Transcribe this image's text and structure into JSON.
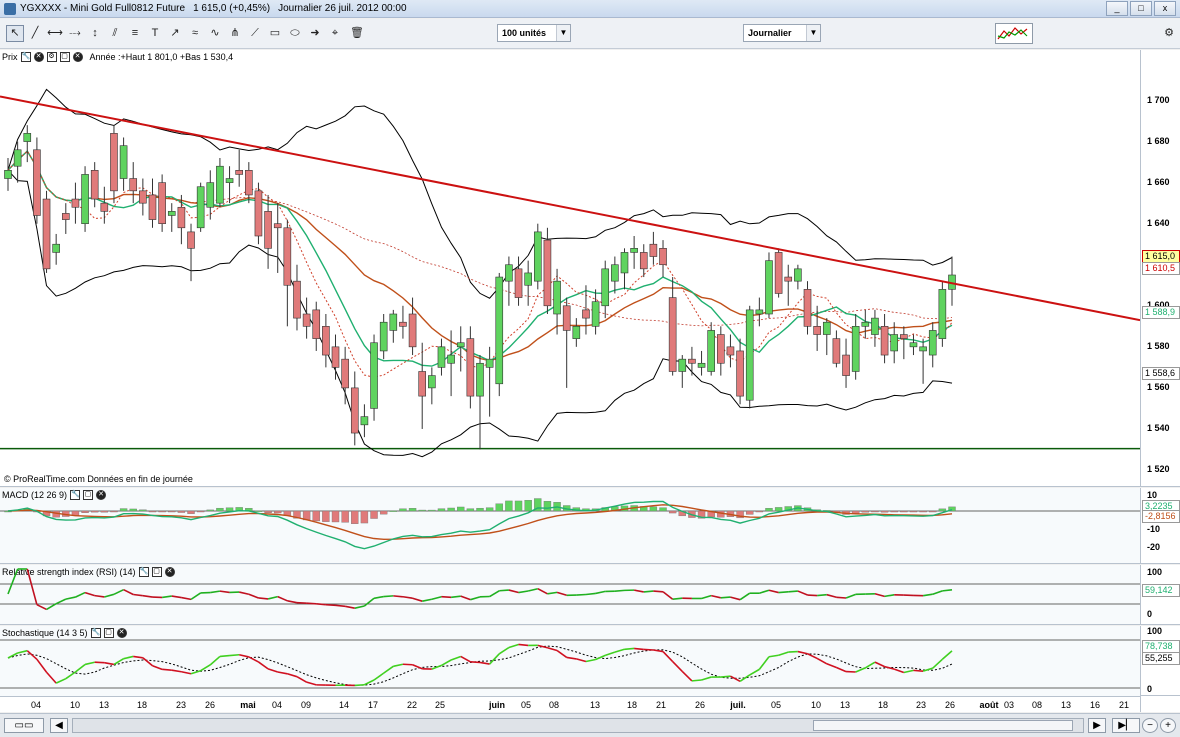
{
  "window": {
    "title_parts": [
      "YGXXXX - Mini Gold Full0812 Future",
      "1 615,0 (+0,45%)",
      "Journalier  26 juil. 2012 00:00"
    ],
    "controls": [
      "_",
      "□",
      "x"
    ]
  },
  "toolbar": {
    "units_select": "100 unités",
    "period_select": "Journalier"
  },
  "price_panel": {
    "title": "Prix",
    "note": "Année :+Haut 1 801,0 +Bas 1 530,4",
    "footer": "© ProRealTime.com  Données en fin de journée",
    "y_ticks": [
      "1 700",
      "1 680",
      "1 660",
      "1 640",
      "1 620",
      "1 600",
      "1 580",
      "1 560",
      "1 540",
      "1 520"
    ],
    "tags": [
      "1 615,0",
      "1 610,5",
      "1 588,9",
      "1 558,6"
    ]
  },
  "macd_panel": {
    "title": "MACD (12 26 9)",
    "y_ticks": [
      "10",
      "-10",
      "-20"
    ],
    "tags": [
      "3,2235",
      "-2,8156"
    ]
  },
  "rsi_panel": {
    "title": "Relative strength index (RSI) (14)",
    "y_ticks": [
      "100",
      "0"
    ],
    "tags": [
      "59,142"
    ]
  },
  "stoch_panel": {
    "title": "Stochastique (14 3 5)",
    "y_ticks": [
      "100",
      "0"
    ],
    "tags": [
      "78,738",
      "55,255"
    ]
  },
  "x_axis": {
    "labels": [
      "04",
      "10",
      "13",
      "18",
      "23",
      "26",
      "mai",
      "04",
      "09",
      "14",
      "17",
      "22",
      "25",
      "juin",
      "05",
      "08",
      "13",
      "18",
      "21",
      "26",
      "juil.",
      "05",
      "10",
      "13",
      "18",
      "23",
      "26",
      "août",
      "03",
      "08",
      "13",
      "16",
      "21"
    ]
  },
  "colors": {
    "bull": "#5fd35f",
    "bear": "#e07a7a",
    "trendline": "#cc1111",
    "ma_orange": "#c0501a",
    "ma_green": "#20b070",
    "bollinger": "#000000"
  },
  "chart_data": {
    "type": "candlestick",
    "title": "Mini Gold Full0812 Future",
    "ylim": [
      1520,
      1710
    ],
    "candles": [
      {
        "o": 1662,
        "h": 1672,
        "l": 1656,
        "c": 1666
      },
      {
        "o": 1668,
        "h": 1680,
        "l": 1660,
        "c": 1676
      },
      {
        "o": 1680,
        "h": 1688,
        "l": 1670,
        "c": 1684
      },
      {
        "o": 1676,
        "h": 1682,
        "l": 1640,
        "c": 1644
      },
      {
        "o": 1652,
        "h": 1656,
        "l": 1616,
        "c": 1618
      },
      {
        "o": 1626,
        "h": 1635,
        "l": 1620,
        "c": 1630
      },
      {
        "o": 1645,
        "h": 1650,
        "l": 1635,
        "c": 1642
      },
      {
        "o": 1652,
        "h": 1660,
        "l": 1640,
        "c": 1648
      },
      {
        "o": 1640,
        "h": 1668,
        "l": 1636,
        "c": 1664
      },
      {
        "o": 1666,
        "h": 1670,
        "l": 1648,
        "c": 1652
      },
      {
        "o": 1650,
        "h": 1658,
        "l": 1640,
        "c": 1646
      },
      {
        "o": 1684,
        "h": 1688,
        "l": 1650,
        "c": 1656
      },
      {
        "o": 1662,
        "h": 1682,
        "l": 1656,
        "c": 1678
      },
      {
        "o": 1662,
        "h": 1670,
        "l": 1650,
        "c": 1656
      },
      {
        "o": 1656,
        "h": 1662,
        "l": 1644,
        "c": 1650
      },
      {
        "o": 1654,
        "h": 1662,
        "l": 1638,
        "c": 1642
      },
      {
        "o": 1660,
        "h": 1664,
        "l": 1636,
        "c": 1640
      },
      {
        "o": 1644,
        "h": 1650,
        "l": 1636,
        "c": 1646
      },
      {
        "o": 1648,
        "h": 1654,
        "l": 1630,
        "c": 1638
      },
      {
        "o": 1636,
        "h": 1640,
        "l": 1612,
        "c": 1628
      },
      {
        "o": 1638,
        "h": 1660,
        "l": 1636,
        "c": 1658
      },
      {
        "o": 1648,
        "h": 1666,
        "l": 1642,
        "c": 1660
      },
      {
        "o": 1650,
        "h": 1672,
        "l": 1648,
        "c": 1668
      },
      {
        "o": 1660,
        "h": 1668,
        "l": 1650,
        "c": 1662
      },
      {
        "o": 1666,
        "h": 1676,
        "l": 1658,
        "c": 1664
      },
      {
        "o": 1666,
        "h": 1670,
        "l": 1650,
        "c": 1654
      },
      {
        "o": 1656,
        "h": 1660,
        "l": 1630,
        "c": 1634
      },
      {
        "o": 1646,
        "h": 1654,
        "l": 1618,
        "c": 1628
      },
      {
        "o": 1640,
        "h": 1650,
        "l": 1616,
        "c": 1638
      },
      {
        "o": 1638,
        "h": 1642,
        "l": 1590,
        "c": 1610
      },
      {
        "o": 1612,
        "h": 1620,
        "l": 1588,
        "c": 1594
      },
      {
        "o": 1596,
        "h": 1604,
        "l": 1584,
        "c": 1590
      },
      {
        "o": 1598,
        "h": 1602,
        "l": 1578,
        "c": 1584
      },
      {
        "o": 1590,
        "h": 1596,
        "l": 1570,
        "c": 1576
      },
      {
        "o": 1580,
        "h": 1586,
        "l": 1564,
        "c": 1570
      },
      {
        "o": 1574,
        "h": 1580,
        "l": 1552,
        "c": 1560
      },
      {
        "o": 1560,
        "h": 1568,
        "l": 1532,
        "c": 1538
      },
      {
        "o": 1542,
        "h": 1552,
        "l": 1536,
        "c": 1546
      },
      {
        "o": 1550,
        "h": 1586,
        "l": 1544,
        "c": 1582
      },
      {
        "o": 1578,
        "h": 1596,
        "l": 1574,
        "c": 1592
      },
      {
        "o": 1588,
        "h": 1598,
        "l": 1582,
        "c": 1596
      },
      {
        "o": 1592,
        "h": 1600,
        "l": 1584,
        "c": 1590
      },
      {
        "o": 1596,
        "h": 1604,
        "l": 1576,
        "c": 1580
      },
      {
        "o": 1568,
        "h": 1582,
        "l": 1540,
        "c": 1556
      },
      {
        "o": 1560,
        "h": 1570,
        "l": 1552,
        "c": 1566
      },
      {
        "o": 1570,
        "h": 1584,
        "l": 1566,
        "c": 1580
      },
      {
        "o": 1572,
        "h": 1588,
        "l": 1556,
        "c": 1576
      },
      {
        "o": 1580,
        "h": 1590,
        "l": 1568,
        "c": 1582
      },
      {
        "o": 1584,
        "h": 1590,
        "l": 1550,
        "c": 1556
      },
      {
        "o": 1556,
        "h": 1576,
        "l": 1530,
        "c": 1572
      },
      {
        "o": 1570,
        "h": 1580,
        "l": 1546,
        "c": 1574
      },
      {
        "o": 1562,
        "h": 1616,
        "l": 1556,
        "c": 1614
      },
      {
        "o": 1612,
        "h": 1624,
        "l": 1600,
        "c": 1620
      },
      {
        "o": 1618,
        "h": 1624,
        "l": 1600,
        "c": 1604
      },
      {
        "o": 1610,
        "h": 1622,
        "l": 1600,
        "c": 1616
      },
      {
        "o": 1612,
        "h": 1640,
        "l": 1608,
        "c": 1636
      },
      {
        "o": 1632,
        "h": 1638,
        "l": 1596,
        "c": 1600
      },
      {
        "o": 1596,
        "h": 1618,
        "l": 1586,
        "c": 1612
      },
      {
        "o": 1600,
        "h": 1604,
        "l": 1560,
        "c": 1588
      },
      {
        "o": 1584,
        "h": 1594,
        "l": 1580,
        "c": 1590
      },
      {
        "o": 1598,
        "h": 1610,
        "l": 1586,
        "c": 1594
      },
      {
        "o": 1590,
        "h": 1608,
        "l": 1586,
        "c": 1602
      },
      {
        "o": 1600,
        "h": 1622,
        "l": 1594,
        "c": 1618
      },
      {
        "o": 1612,
        "h": 1624,
        "l": 1606,
        "c": 1620
      },
      {
        "o": 1616,
        "h": 1628,
        "l": 1608,
        "c": 1626
      },
      {
        "o": 1626,
        "h": 1634,
        "l": 1618,
        "c": 1628
      },
      {
        "o": 1626,
        "h": 1630,
        "l": 1614,
        "c": 1618
      },
      {
        "o": 1630,
        "h": 1636,
        "l": 1620,
        "c": 1624
      },
      {
        "o": 1628,
        "h": 1632,
        "l": 1614,
        "c": 1620
      },
      {
        "o": 1604,
        "h": 1614,
        "l": 1566,
        "c": 1568
      },
      {
        "o": 1568,
        "h": 1576,
        "l": 1560,
        "c": 1574
      },
      {
        "o": 1574,
        "h": 1580,
        "l": 1566,
        "c": 1572
      },
      {
        "o": 1570,
        "h": 1578,
        "l": 1566,
        "c": 1572
      },
      {
        "o": 1568,
        "h": 1592,
        "l": 1566,
        "c": 1588
      },
      {
        "o": 1586,
        "h": 1590,
        "l": 1566,
        "c": 1572
      },
      {
        "o": 1580,
        "h": 1586,
        "l": 1570,
        "c": 1576
      },
      {
        "o": 1578,
        "h": 1584,
        "l": 1552,
        "c": 1556
      },
      {
        "o": 1554,
        "h": 1600,
        "l": 1550,
        "c": 1598
      },
      {
        "o": 1596,
        "h": 1604,
        "l": 1590,
        "c": 1598
      },
      {
        "o": 1596,
        "h": 1626,
        "l": 1594,
        "c": 1622
      },
      {
        "o": 1626,
        "h": 1628,
        "l": 1604,
        "c": 1606
      },
      {
        "o": 1614,
        "h": 1620,
        "l": 1600,
        "c": 1612
      },
      {
        "o": 1612,
        "h": 1620,
        "l": 1608,
        "c": 1618
      },
      {
        "o": 1608,
        "h": 1612,
        "l": 1586,
        "c": 1590
      },
      {
        "o": 1590,
        "h": 1600,
        "l": 1578,
        "c": 1586
      },
      {
        "o": 1586,
        "h": 1594,
        "l": 1576,
        "c": 1592
      },
      {
        "o": 1584,
        "h": 1588,
        "l": 1570,
        "c": 1572
      },
      {
        "o": 1576,
        "h": 1584,
        "l": 1560,
        "c": 1566
      },
      {
        "o": 1568,
        "h": 1596,
        "l": 1564,
        "c": 1590
      },
      {
        "o": 1590,
        "h": 1598,
        "l": 1584,
        "c": 1592
      },
      {
        "o": 1586,
        "h": 1598,
        "l": 1580,
        "c": 1594
      },
      {
        "o": 1590,
        "h": 1596,
        "l": 1572,
        "c": 1576
      },
      {
        "o": 1578,
        "h": 1592,
        "l": 1572,
        "c": 1586
      },
      {
        "o": 1586,
        "h": 1590,
        "l": 1574,
        "c": 1584
      },
      {
        "o": 1580,
        "h": 1586,
        "l": 1576,
        "c": 1582
      },
      {
        "o": 1578,
        "h": 1584,
        "l": 1562,
        "c": 1580
      },
      {
        "o": 1576,
        "h": 1592,
        "l": 1570,
        "c": 1588
      },
      {
        "o": 1584,
        "h": 1612,
        "l": 1580,
        "c": 1608
      },
      {
        "o": 1608,
        "h": 1624,
        "l": 1600,
        "c": 1615
      }
    ]
  }
}
